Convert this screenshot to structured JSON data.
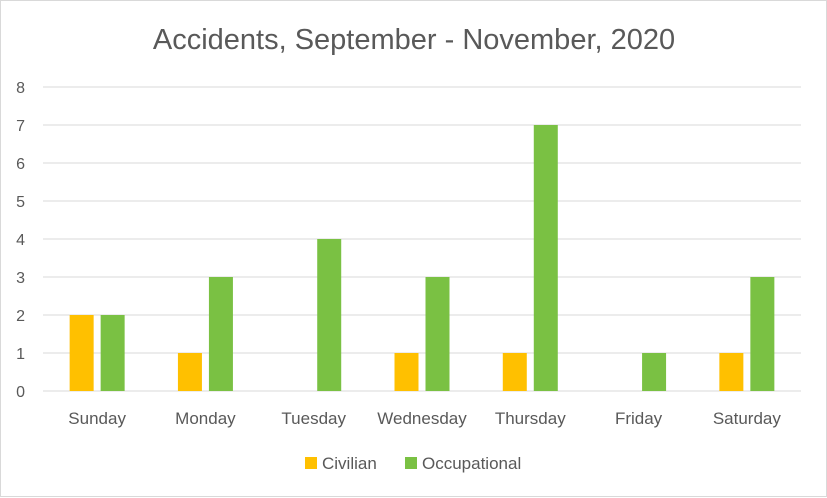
{
  "chart_data": {
    "type": "bar",
    "title": "Accidents, September - November, 2020",
    "xlabel": "",
    "ylabel": "",
    "categories": [
      "Sunday",
      "Monday",
      "Tuesday",
      "Wednesday",
      "Thursday",
      "Friday",
      "Saturday"
    ],
    "series": [
      {
        "name": "Civilian",
        "color": "#ffc000",
        "values": [
          2,
          1,
          0,
          1,
          1,
          0,
          1
        ]
      },
      {
        "name": "Occupational",
        "color": "#7ac143",
        "values": [
          2,
          3,
          4,
          3,
          7,
          1,
          3
        ]
      }
    ],
    "ylim": [
      0,
      8
    ],
    "yticks": [
      0,
      1,
      2,
      3,
      4,
      5,
      6,
      7,
      8
    ],
    "grid": true,
    "legend_position": "bottom"
  }
}
